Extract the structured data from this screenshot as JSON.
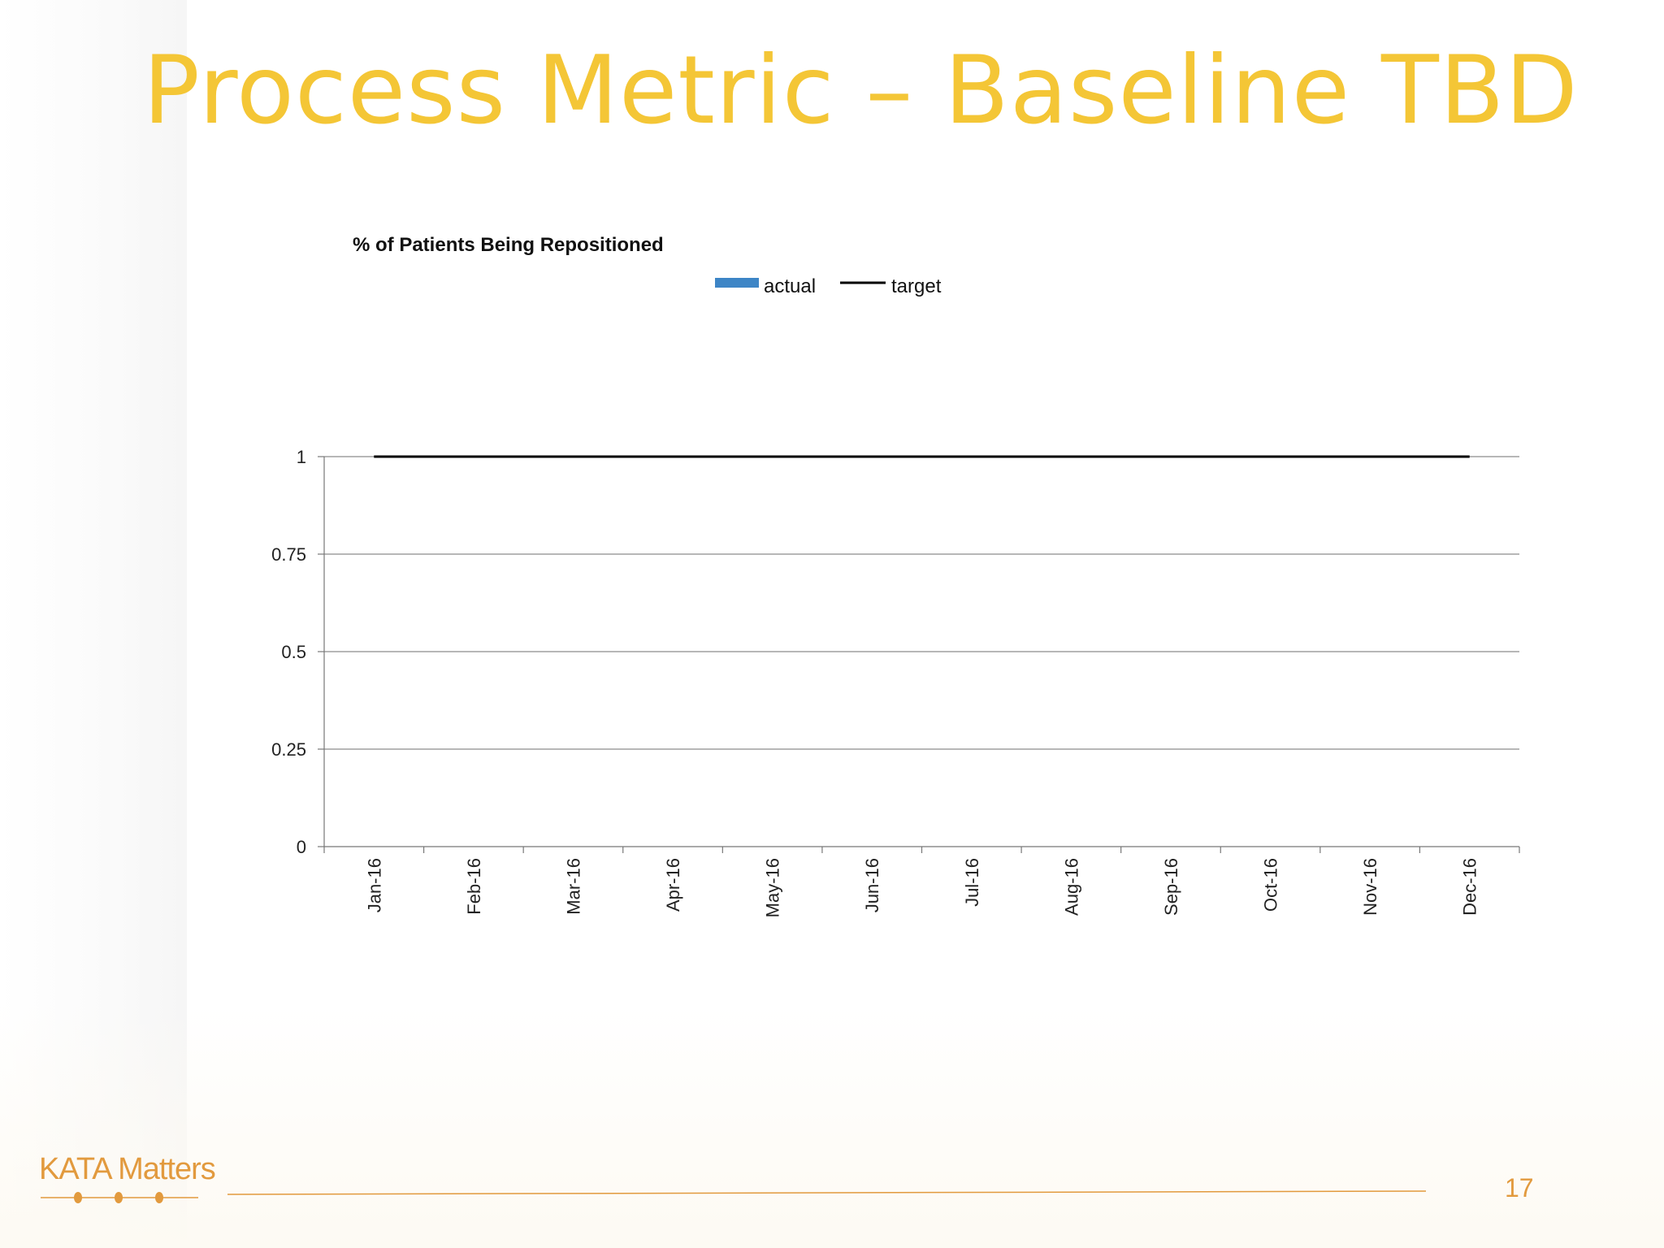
{
  "slide": {
    "title": "Process Metric – Baseline TBD",
    "logo_text": "KATA Matters",
    "page_number": "17"
  },
  "colors": {
    "title": "#f4c636",
    "accent": "#e29a3e",
    "actual_series": "#3d85c6",
    "target_series": "#000000",
    "gridline": "#8c8c8c"
  },
  "chart_data": {
    "type": "bar",
    "title": "% of Patients Being Repositioned",
    "xlabel": "",
    "ylabel": "",
    "categories": [
      "Jan-16",
      "Feb-16",
      "Mar-16",
      "Apr-16",
      "May-16",
      "Jun-16",
      "Jul-16",
      "Aug-16",
      "Sep-16",
      "Oct-16",
      "Nov-16",
      "Dec-16"
    ],
    "series": [
      {
        "name": "actual",
        "type": "bar",
        "color": "#3d85c6",
        "values": [
          null,
          null,
          null,
          null,
          null,
          null,
          null,
          null,
          null,
          null,
          null,
          null
        ]
      },
      {
        "name": "target",
        "type": "line",
        "color": "#000000",
        "values": [
          1,
          1,
          1,
          1,
          1,
          1,
          1,
          1,
          1,
          1,
          1,
          1
        ]
      }
    ],
    "ylim": [
      0,
      1
    ],
    "yticks": [
      0,
      0.25,
      0.5,
      0.75,
      1
    ],
    "ytick_labels": [
      "0",
      "0.25",
      "0.5",
      "0.75",
      "1"
    ],
    "grid": true,
    "legend_position": "top"
  }
}
